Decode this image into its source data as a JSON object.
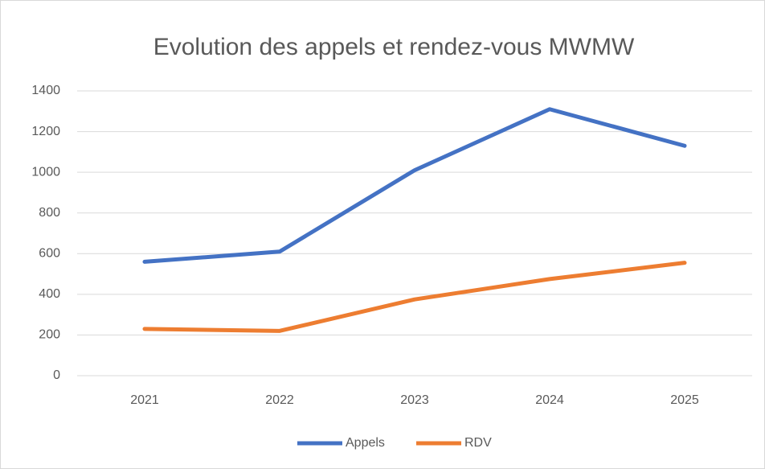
{
  "chart_data": {
    "type": "line",
    "title": "Evolution des appels et rendez-vous MWMW",
    "categories": [
      "2021",
      "2022",
      "2023",
      "2024",
      "2025"
    ],
    "series": [
      {
        "name": "Appels",
        "color": "#4472c4",
        "values": [
          560,
          610,
          1010,
          1310,
          1130
        ]
      },
      {
        "name": "RDV",
        "color": "#ed7d31",
        "values": [
          230,
          220,
          375,
          475,
          555
        ]
      }
    ],
    "ylim": [
      0,
      1400
    ],
    "yticks": [
      0,
      200,
      400,
      600,
      800,
      1000,
      1200,
      1400
    ],
    "grid": true,
    "legend": "bottom"
  }
}
